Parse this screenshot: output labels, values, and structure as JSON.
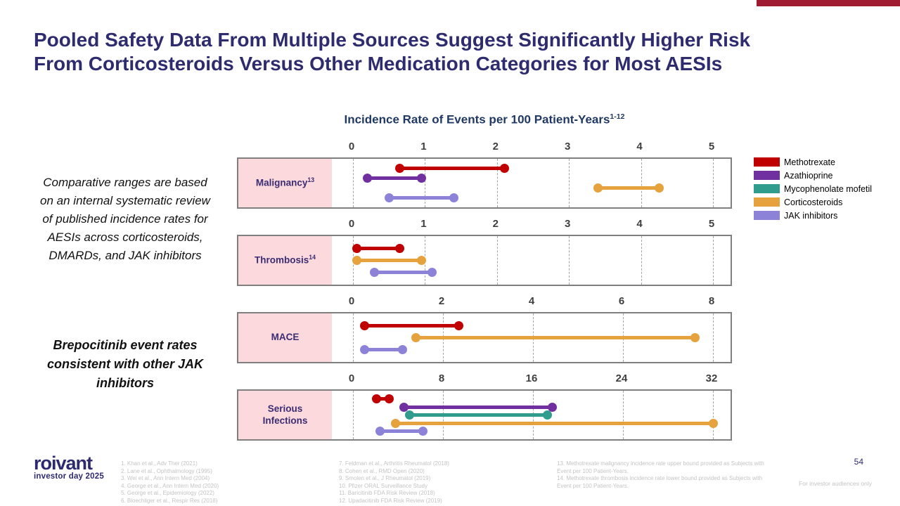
{
  "slide": {
    "title_line1": "Pooled Safety Data From Multiple Sources Suggest Significantly Higher Risk",
    "title_line2": "From Corticosteroids Versus Other Medication Categories for Most AESIs",
    "page_number": "54",
    "audience_note": "For investor audiences only",
    "accent_bar_color": "#9E1B32"
  },
  "logo": {
    "name": "roivant",
    "subtitle": "investor day 2025"
  },
  "sidebar": {
    "note": "Comparative ranges are based on an internal systematic review of published incidence rates for AESIs across corticosteroids, DMARDs, and JAK inhibitors",
    "callout": "Brepocitinib event rates consistent with other JAK inhibitors"
  },
  "chart_data": {
    "type": "dumbbell-range",
    "title": "Incidence Rate of Events per 100 Patient-Years",
    "title_superscript": "1-12",
    "label_bg": "#FBD9DD",
    "legend_position": "right",
    "grid": "dashed-vertical",
    "legend": [
      {
        "name": "Methotrexate",
        "color": "#C00000"
      },
      {
        "name": "Azathioprine",
        "color": "#7030A0"
      },
      {
        "name": "Mycophenolate mofetil",
        "color": "#2F9C8E"
      },
      {
        "name": "Corticosteroids",
        "color": "#E6A23C"
      },
      {
        "name": "JAK inhibitors",
        "color": "#8C83D8"
      }
    ],
    "panels": [
      {
        "label": "Malignancy",
        "label_superscript": "13",
        "axis": {
          "min": 0,
          "max": 5,
          "ticks": [
            0,
            1,
            2,
            3,
            4,
            5
          ]
        },
        "ranges": [
          {
            "series": "Methotrexate",
            "low": 0.65,
            "high": 2.1
          },
          {
            "series": "Azathioprine",
            "low": 0.2,
            "high": 0.95
          },
          {
            "series": "Corticosteroids",
            "low": 3.4,
            "high": 4.25
          },
          {
            "series": "JAK inhibitors",
            "low": 0.5,
            "high": 1.4
          }
        ]
      },
      {
        "label": "Thrombosis",
        "label_superscript": "14",
        "axis": {
          "min": 0,
          "max": 5,
          "ticks": [
            0,
            1,
            2,
            3,
            4,
            5
          ]
        },
        "ranges": [
          {
            "series": "Methotrexate",
            "low": 0.05,
            "high": 0.65
          },
          {
            "series": "Corticosteroids",
            "low": 0.05,
            "high": 0.95
          },
          {
            "series": "JAK inhibitors",
            "low": 0.3,
            "high": 1.1
          }
        ]
      },
      {
        "label": "MACE",
        "label_superscript": "",
        "axis": {
          "min": 0,
          "max": 8,
          "ticks": [
            0,
            2,
            4,
            6,
            8
          ]
        },
        "ranges": [
          {
            "series": "Methotrexate",
            "low": 0.25,
            "high": 2.35
          },
          {
            "series": "Corticosteroids",
            "low": 1.4,
            "high": 7.6
          },
          {
            "series": "JAK inhibitors",
            "low": 0.25,
            "high": 1.1
          }
        ]
      },
      {
        "label": "Serious Infections",
        "label_superscript": "",
        "axis": {
          "min": 0,
          "max": 32,
          "ticks": [
            0,
            8,
            16,
            24,
            32
          ]
        },
        "ranges": [
          {
            "series": "Methotrexate",
            "low": 2.1,
            "high": 3.2
          },
          {
            "series": "Azathioprine",
            "low": 4.5,
            "high": 17.7
          },
          {
            "series": "Mycophenolate mofetil",
            "low": 5.0,
            "high": 17.3
          },
          {
            "series": "Corticosteroids",
            "low": 3.8,
            "high": 32.0
          },
          {
            "series": "JAK inhibitors",
            "low": 2.4,
            "high": 6.2
          }
        ]
      }
    ]
  },
  "footnotes": {
    "col1": [
      "1. Khan et al., Adv Ther (2021)",
      "2. Lane et al., Ophthalmology (1995)",
      "3. Wei et al., Ann Intern Med (2004)",
      "4. George et al., Ann Intern Med (2020)",
      "5. George et al., Epidemiology (2022)",
      "6. Bloechliger et al., Respir Res (2018)"
    ],
    "col2": [
      "7. Feldman et al., Arthritis Rheumatol (2018)",
      "8. Cohen et al., RMD Open (2020)",
      "9. Smolen et al., J Rheumatol (2019)",
      "10. Pfizer ORAL Surveillance Study",
      "11. Baricitinib FDA Risk Review (2018)",
      "12. Upadacitinib FDA Risk Review (2019)"
    ],
    "col3": [
      "13. Methotrexate malignancy incidence rate upper bound provided as Subjects with Event per 100 Patient-Years.",
      "14. Methotrexate thrombosis incidence rate lower bound provided as Subjects with Event per 100 Patient-Years."
    ]
  }
}
